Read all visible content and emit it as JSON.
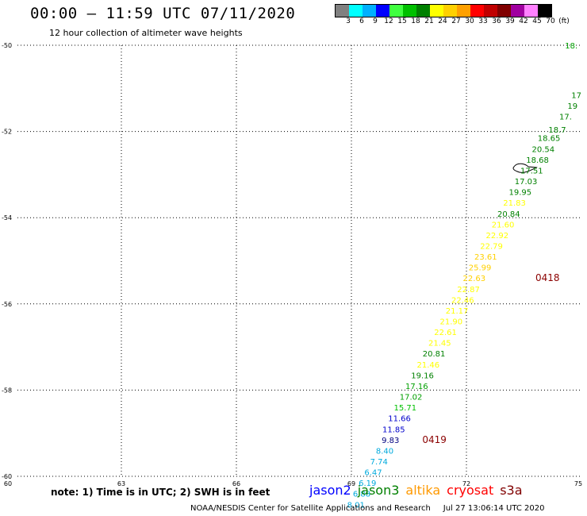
{
  "header": {
    "title": "00:00 – 11:59 UTC 07/11/2020",
    "subtitle": "12 hour collection of altimeter wave heights"
  },
  "legend": {
    "colors": [
      "#808080",
      "#00ffff",
      "#00b0ff",
      "#0000ff",
      "#40ff40",
      "#00c000",
      "#008000",
      "#ffff00",
      "#ffd000",
      "#ffa000",
      "#ff0000",
      "#c00000",
      "#800000",
      "#a000a0",
      "#ff80ff",
      "#000000"
    ],
    "labels": [
      "3",
      "6",
      "9",
      "12",
      "15",
      "18",
      "21",
      "24",
      "27",
      "30",
      "33",
      "36",
      "39",
      "42",
      "45",
      "70",
      "(ft)"
    ]
  },
  "map": {
    "lon_range": [
      60,
      75
    ],
    "lat_range": [
      -60,
      -50
    ],
    "lon_ticks": [
      "60",
      "63",
      "66",
      "69",
      "72",
      "75"
    ],
    "lat_ticks": [
      "-50",
      "-52",
      "-54",
      "-56",
      "-58",
      "-60"
    ],
    "grid": "dotted"
  },
  "observations": [
    {
      "lon": 74.9,
      "lat": -50.0,
      "value": "18.",
      "color": "#00a000"
    },
    {
      "lon": 75.0,
      "lat": -51.15,
      "value": "17",
      "color": "#008000"
    },
    {
      "lon": 74.9,
      "lat": -51.4,
      "value": "19",
      "color": "#008000"
    },
    {
      "lon": 74.75,
      "lat": -51.65,
      "value": "17.",
      "color": "#008000"
    },
    {
      "lon": 74.6,
      "lat": -51.95,
      "value": "18.7",
      "color": "#008000"
    },
    {
      "lon": 74.45,
      "lat": -52.15,
      "value": "18.65",
      "color": "#008000"
    },
    {
      "lon": 74.3,
      "lat": -52.4,
      "value": "20.54",
      "color": "#008000"
    },
    {
      "lon": 74.15,
      "lat": -52.65,
      "value": "18.68",
      "color": "#008000"
    },
    {
      "lon": 74.0,
      "lat": -52.9,
      "value": "17.51",
      "color": "#008000"
    },
    {
      "lon": 73.85,
      "lat": -53.15,
      "value": "17.03",
      "color": "#008000"
    },
    {
      "lon": 73.7,
      "lat": -53.4,
      "value": "19.95",
      "color": "#008000"
    },
    {
      "lon": 73.55,
      "lat": -53.65,
      "value": "21.83",
      "color": "#ffff00"
    },
    {
      "lon": 73.4,
      "lat": -53.9,
      "value": "20.84",
      "color": "#008000"
    },
    {
      "lon": 73.25,
      "lat": -54.15,
      "value": "21.60",
      "color": "#ffff00"
    },
    {
      "lon": 73.1,
      "lat": -54.4,
      "value": "22.92",
      "color": "#ffff00"
    },
    {
      "lon": 72.95,
      "lat": -54.65,
      "value": "22.79",
      "color": "#ffff00"
    },
    {
      "lon": 72.8,
      "lat": -54.9,
      "value": "23.61",
      "color": "#ffd000"
    },
    {
      "lon": 72.65,
      "lat": -55.15,
      "value": "25.99",
      "color": "#ffd000"
    },
    {
      "lon": 72.5,
      "lat": -55.4,
      "value": "22.63",
      "color": "#ffd000"
    },
    {
      "lon": 72.35,
      "lat": -55.65,
      "value": "22.87",
      "color": "#ffff00"
    },
    {
      "lon": 72.2,
      "lat": -55.9,
      "value": "22.46",
      "color": "#ffff00"
    },
    {
      "lon": 72.05,
      "lat": -56.15,
      "value": "21.17",
      "color": "#ffff00"
    },
    {
      "lon": 71.9,
      "lat": -56.4,
      "value": "21.90",
      "color": "#ffff00"
    },
    {
      "lon": 71.75,
      "lat": -56.65,
      "value": "22.61",
      "color": "#ffff00"
    },
    {
      "lon": 71.6,
      "lat": -56.9,
      "value": "21.45",
      "color": "#ffff00"
    },
    {
      "lon": 71.45,
      "lat": -57.15,
      "value": "20.81",
      "color": "#008000"
    },
    {
      "lon": 71.3,
      "lat": -57.4,
      "value": "21.46",
      "color": "#ffff00"
    },
    {
      "lon": 71.15,
      "lat": -57.65,
      "value": "19.16",
      "color": "#008000"
    },
    {
      "lon": 71.0,
      "lat": -57.9,
      "value": "17.16",
      "color": "#00a000"
    },
    {
      "lon": 70.85,
      "lat": -58.15,
      "value": "17.02",
      "color": "#00a000"
    },
    {
      "lon": 70.7,
      "lat": -58.4,
      "value": "15.71",
      "color": "#00c000"
    },
    {
      "lon": 70.55,
      "lat": -58.65,
      "value": "11.66",
      "color": "#0000cc"
    },
    {
      "lon": 70.4,
      "lat": -58.9,
      "value": "11.85",
      "color": "#0000cc"
    },
    {
      "lon": 70.25,
      "lat": -59.15,
      "value": "9.83",
      "color": "#000080"
    },
    {
      "lon": 70.1,
      "lat": -59.4,
      "value": "8.40",
      "color": "#00aadd"
    },
    {
      "lon": 69.95,
      "lat": -59.65,
      "value": "7.74",
      "color": "#00aadd"
    },
    {
      "lon": 69.8,
      "lat": -59.9,
      "value": "6.47",
      "color": "#00aadd"
    },
    {
      "lon": 69.65,
      "lat": -60.15,
      "value": "6.19",
      "color": "#00aadd"
    },
    {
      "lon": 69.5,
      "lat": -60.4,
      "value": "6.88",
      "color": "#00aadd"
    },
    {
      "lon": 69.35,
      "lat": -60.65,
      "value": "8.01",
      "color": "#00aadd"
    }
  ],
  "track_labels": [
    {
      "lon": 73.8,
      "lat": -55.4,
      "text": "0418"
    },
    {
      "lon": 70.85,
      "lat": -59.15,
      "text": "0419"
    }
  ],
  "footer": {
    "note": "note:  1) Time is in UTC;  2) SWH is in feet",
    "satellites": [
      {
        "name": "jason2",
        "color": "#0000ff"
      },
      {
        "name": "jason3",
        "color": "#008000"
      },
      {
        "name": "altika",
        "color": "#ff9900"
      },
      {
        "name": "cryosat",
        "color": "#ff0000"
      },
      {
        "name": "s3a",
        "color": "#800000"
      }
    ],
    "credit": "NOAA/NESDIS Center for Satellite Applications and Research",
    "timestamp": "Jul 27 13:06:14 UTC 2020"
  }
}
